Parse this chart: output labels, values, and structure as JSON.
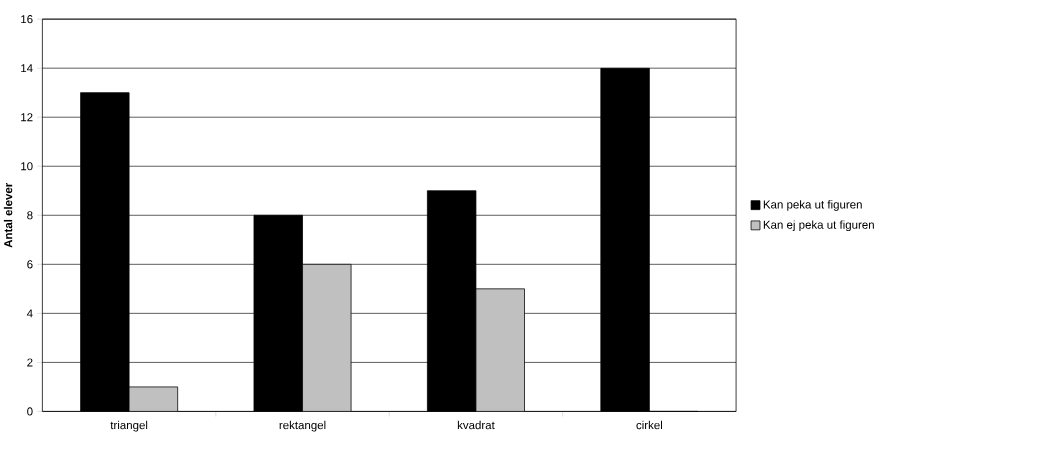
{
  "chart_data": {
    "type": "bar",
    "ylabel": "Antal elever",
    "categories": [
      "triangel",
      "rektangel",
      "kvadrat",
      "cirkel"
    ],
    "series": [
      {
        "name": "Kan peka ut figuren",
        "color": "#000000",
        "values": [
          13,
          8,
          9,
          14
        ]
      },
      {
        "name": "Kan ej peka ut figuren",
        "color": "#c0c0c0",
        "values": [
          1,
          6,
          5,
          0
        ]
      }
    ],
    "ylim": [
      0,
      16
    ],
    "yticks": [
      0,
      2,
      4,
      6,
      8,
      10,
      12,
      14,
      16
    ],
    "grid": "y",
    "legend": "right"
  }
}
